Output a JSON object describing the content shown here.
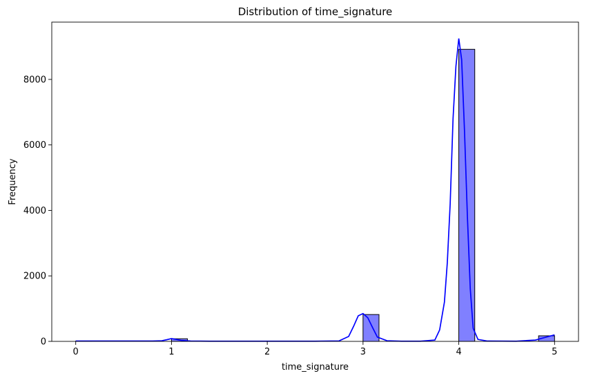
{
  "chart_data": {
    "type": "bar",
    "title": "Distribution of time_signature",
    "xlabel": "time_signature",
    "ylabel": "Frequency",
    "xlim": [
      -0.25,
      5.25
    ],
    "ylim": [
      0,
      9750
    ],
    "xticks": [
      0,
      1,
      2,
      3,
      4,
      5
    ],
    "yticks": [
      0,
      2000,
      4000,
      6000,
      8000
    ],
    "grid": false,
    "legend": "none",
    "colors": {
      "bar_fill": "#8080ff",
      "bar_edge": "#000000",
      "kde_line": "#0000ff"
    },
    "bins": [
      {
        "x0": 0.0,
        "x1": 0.1667,
        "value": 8
      },
      {
        "x0": 1.0,
        "x1": 1.1667,
        "value": 80
      },
      {
        "x0": 3.0,
        "x1": 3.1667,
        "value": 820
      },
      {
        "x0": 4.0,
        "x1": 4.1667,
        "value": 8920
      },
      {
        "x0": 4.8333,
        "x1": 5.0,
        "value": 170
      }
    ],
    "kde": {
      "x": [
        0,
        0.8,
        0.9,
        0.95,
        1.0,
        1.05,
        1.1,
        1.2,
        1.4,
        2.5,
        2.75,
        2.85,
        2.9,
        2.95,
        3.0,
        3.05,
        3.1,
        3.15,
        3.25,
        3.4,
        3.6,
        3.75,
        3.8,
        3.85,
        3.88,
        3.91,
        3.94,
        3.97,
        4.0,
        4.03,
        4.06,
        4.09,
        4.12,
        4.15,
        4.2,
        4.3,
        4.6,
        4.8,
        4.9,
        5.0
      ],
      "y": [
        10,
        10,
        20,
        50,
        85,
        60,
        30,
        10,
        5,
        5,
        15,
        150,
        450,
        780,
        850,
        720,
        420,
        130,
        20,
        5,
        5,
        40,
        350,
        1200,
        2400,
        4200,
        6800,
        8400,
        9250,
        8600,
        6400,
        3800,
        1600,
        400,
        60,
        10,
        5,
        40,
        120,
        200
      ]
    }
  }
}
